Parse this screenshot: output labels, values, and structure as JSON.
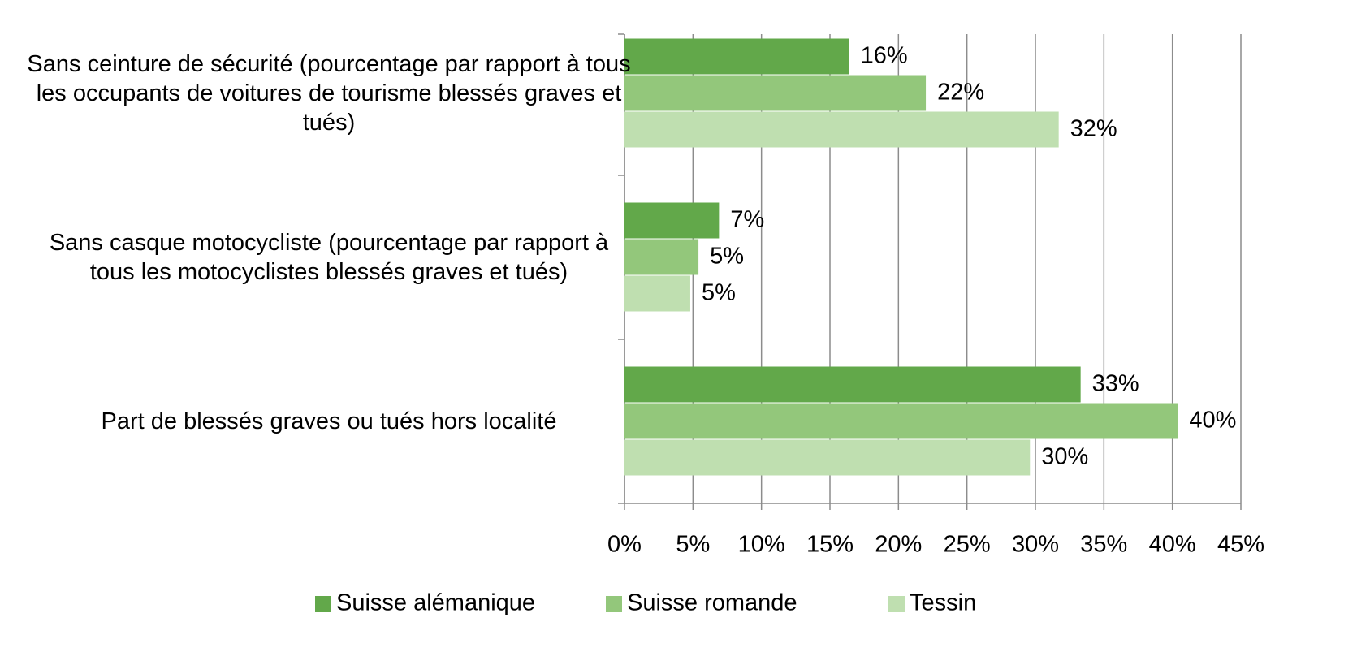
{
  "chart_data": {
    "type": "bar",
    "orientation": "horizontal",
    "categories": [
      "Sans ceinture de sécurité (pourcentage par rapport à tous les occupants de voitures de tourisme blessés graves et tués)",
      "Sans casque motocycliste (pourcentage par rapport à tous les motocyclistes blessés graves et tués)",
      "Part de blessés graves ou tués hors localité"
    ],
    "series": [
      {
        "name": "Suisse alémanique",
        "color": "#62a84a",
        "values": [
          16.4,
          6.9,
          33.3
        ],
        "value_labels": [
          "16%",
          "7%",
          "33%"
        ]
      },
      {
        "name": "Suisse romande",
        "color": "#93c77b",
        "values": [
          22.0,
          5.4,
          40.4
        ],
        "value_labels": [
          "22%",
          "5%",
          "40%"
        ]
      },
      {
        "name": "Tessin",
        "color": "#bfdfb0",
        "values": [
          31.7,
          4.8,
          29.6
        ],
        "value_labels": [
          "32%",
          "5%",
          "30%"
        ]
      }
    ],
    "xlim": [
      0,
      45
    ],
    "xticks": [
      {
        "value": 0,
        "label": "0%"
      },
      {
        "value": 5,
        "label": "5%"
      },
      {
        "value": 10,
        "label": "10%"
      },
      {
        "value": 15,
        "label": "15%"
      },
      {
        "value": 20,
        "label": "20%"
      },
      {
        "value": 25,
        "label": "25%"
      },
      {
        "value": 30,
        "label": "30%"
      },
      {
        "value": 35,
        "label": "35%"
      },
      {
        "value": 40,
        "label": "40%"
      },
      {
        "value": 45,
        "label": "45%"
      }
    ],
    "grid": true,
    "legend": "bottom"
  }
}
